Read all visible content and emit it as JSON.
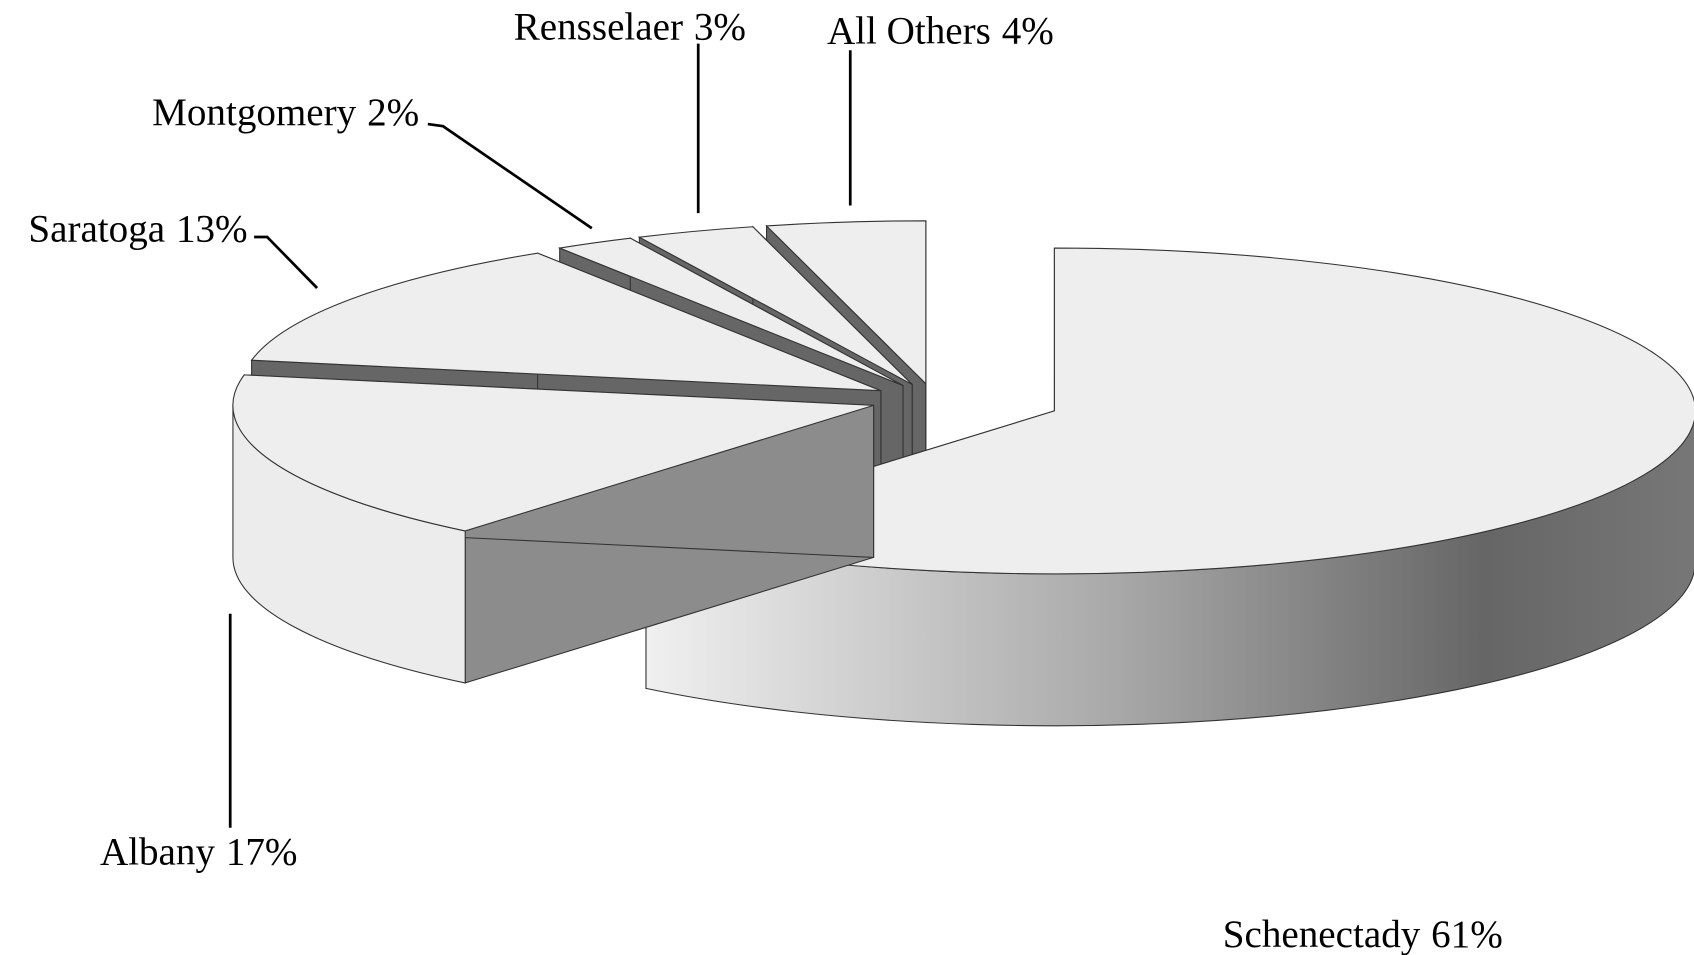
{
  "chart_data": {
    "type": "pie3d",
    "categories": [
      "Schenectady",
      "Albany",
      "Saratoga",
      "Montgomery",
      "Rensselaer",
      "All Others"
    ],
    "values": [
      61,
      17,
      13,
      2,
      3,
      4
    ],
    "value_labels": [
      "61%",
      "17%",
      "13%",
      "2%",
      "3%",
      "4%"
    ]
  }
}
